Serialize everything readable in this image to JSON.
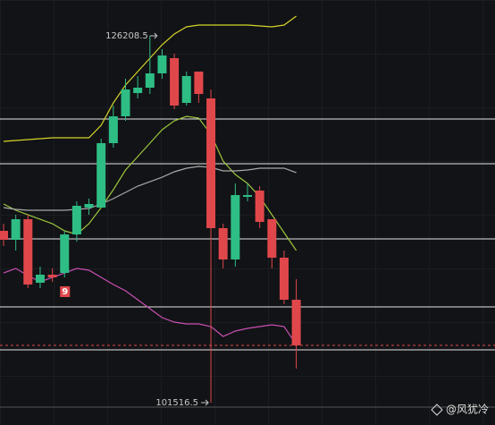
{
  "chart_data": {
    "type": "candlestick",
    "up_color": "#2ebd85",
    "down_color": "#e0474b",
    "ylim": [
      100013,
      128617
    ],
    "open": [
      113080,
      112478,
      113863,
      109588,
      110130,
      110250,
      112840,
      114646,
      114646,
      118982,
      120789,
      122354,
      122716,
      123679,
      124703,
      121692,
      123800,
      121993,
      113261,
      111153,
      115368,
      115790,
      113863,
      111274,
      108443
    ],
    "close": [
      112478,
      113863,
      109467,
      110130,
      109949,
      112840,
      114767,
      114887,
      118982,
      120789,
      122595,
      122716,
      123679,
      124884,
      121512,
      123498,
      122294,
      113261,
      111153,
      115489,
      115489,
      113683,
      111274,
      108443,
      105372
    ],
    "high": [
      113562,
      114164,
      114164,
      110672,
      110551,
      113080,
      115068,
      115248,
      119283,
      121512,
      123318,
      123498,
      126208.5,
      125305,
      125004,
      123800,
      123800,
      122595,
      113562,
      116272,
      116272,
      116091,
      113863,
      111756,
      109828
    ],
    "low": [
      112057,
      111756,
      109226,
      109226,
      109648,
      109949,
      112358,
      114164,
      114646,
      118681,
      120488,
      121993,
      122294,
      123318,
      121270,
      121512,
      121692,
      101516.5,
      110551,
      110672,
      115068,
      113261,
      110551,
      108142,
      103806
    ],
    "lines": [
      {
        "color": "#d4d42a",
        "values": [
          119102,
          119162,
          119223,
          119283,
          119343,
          119343,
          119343,
          119343,
          120186,
          121692,
          122896,
          123799,
          124703,
          125606,
          126329,
          126810,
          126931,
          126931,
          126931,
          126931,
          126931,
          126871,
          126810,
          126931,
          127533
        ]
      },
      {
        "color": "#9bc53d",
        "values": [
          114887,
          114465,
          114164,
          113863,
          113562,
          113080,
          112839,
          113562,
          114646,
          115850,
          117175,
          118078,
          118982,
          119885,
          120487,
          120788,
          120668,
          119584,
          117777,
          116874,
          116272,
          115369,
          114164,
          112960,
          111756
        ]
      },
      {
        "color": "#a8a8a8",
        "values": [
          114646,
          114526,
          114465,
          114465,
          114465,
          114465,
          114526,
          114586,
          114887,
          115248,
          115670,
          116091,
          116392,
          116693,
          117055,
          117296,
          117416,
          117356,
          117115,
          117115,
          117175,
          117296,
          117296,
          117296,
          116995
        ]
      },
      {
        "color": "#c94fb4",
        "values": [
          110250,
          110551,
          110069,
          109648,
          109949,
          110250,
          110551,
          110431,
          109949,
          109467,
          109045,
          108443,
          107841,
          107239,
          106938,
          106817,
          106817,
          106637,
          105974,
          106336,
          106516,
          106637,
          106757,
          106637,
          105432
        ]
      }
    ],
    "levels": [
      120608,
      117597,
      112538,
      107962,
      105071
    ],
    "high_marker": "126208.5",
    "low_marker": "101516.5",
    "badge": "9",
    "watermark": "@风犹冷"
  }
}
